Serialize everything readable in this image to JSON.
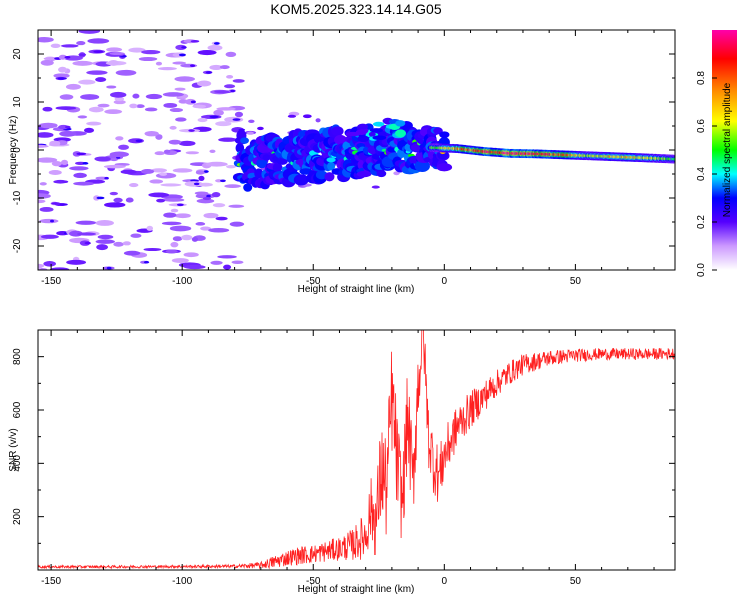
{
  "figure_title": "KOM5.2025.323.14.14.G05",
  "chart_data": [
    {
      "type": "heatmap",
      "title": "KOM5.2025.323.14.14.G05",
      "xlabel": "Height of straight line (km)",
      "ylabel": "Frequency (Hz)",
      "xlim": [
        -155,
        88
      ],
      "ylim": [
        -25,
        25
      ],
      "xticks": [
        -150,
        -100,
        -50,
        0,
        50
      ],
      "xtick_labels": [
        "-150",
        "-100",
        "-50",
        "0",
        "50"
      ],
      "yticks": [
        -20,
        -10,
        0,
        10,
        20
      ],
      "ytick_labels": [
        "-20",
        "-10",
        "0",
        "10",
        "20"
      ],
      "colorbar": {
        "label": "Normalized spectral amplitude",
        "range": [
          0,
          1
        ],
        "ticks": [
          0.0,
          0.2,
          0.4,
          0.6,
          0.8
        ],
        "tick_labels": [
          "0.0",
          "0.2",
          "0.4",
          "0.6",
          "0.8"
        ],
        "colors": [
          "#ffffff",
          "#cc99ff",
          "#5500ff",
          "#0000ff",
          "#00ffff",
          "#00ff00",
          "#ffff00",
          "#ff8800",
          "#ff0000",
          "#ff00aa"
        ]
      },
      "ridge": {
        "description": "Dominant spectral ridge: frequency vs height",
        "points": [
          {
            "x": -77,
            "y": -3,
            "amp": 0.35
          },
          {
            "x": -65,
            "y": -2,
            "amp": 0.4
          },
          {
            "x": -55,
            "y": -1.5,
            "amp": 0.35
          },
          {
            "x": -45,
            "y": -1,
            "amp": 0.35
          },
          {
            "x": -35,
            "y": -0.5,
            "amp": 0.4
          },
          {
            "x": -25,
            "y": 0,
            "amp": 0.45
          },
          {
            "x": -15,
            "y": 0.3,
            "amp": 0.55
          },
          {
            "x": -5,
            "y": 0.5,
            "amp": 0.5
          },
          {
            "x": 5,
            "y": 0.3,
            "amp": 0.75
          },
          {
            "x": 15,
            "y": -0.3,
            "amp": 0.9
          },
          {
            "x": 25,
            "y": -0.7,
            "amp": 0.95
          },
          {
            "x": 35,
            "y": -0.8,
            "amp": 0.95
          },
          {
            "x": 45,
            "y": -1.0,
            "amp": 0.8
          },
          {
            "x": 55,
            "y": -1.2,
            "amp": 0.6
          },
          {
            "x": 65,
            "y": -1.4,
            "amp": 0.7
          },
          {
            "x": 75,
            "y": -1.6,
            "amp": 0.65
          },
          {
            "x": 88,
            "y": -1.9,
            "amp": 0.5
          }
        ]
      }
    },
    {
      "type": "line",
      "xlabel": "Height of straight line (km)",
      "ylabel": "SNR (v/v)",
      "xlim": [
        -155,
        88
      ],
      "ylim": [
        0,
        900
      ],
      "xticks": [
        -150,
        -100,
        -50,
        0,
        50
      ],
      "xtick_labels": [
        "-150",
        "-100",
        "-50",
        "0",
        "50"
      ],
      "yticks": [
        200,
        400,
        600,
        800
      ],
      "ytick_labels": [
        "200",
        "400",
        "600",
        "800"
      ],
      "series": [
        {
          "name": "SNR",
          "color": "#ff2020",
          "x": [
            -155,
            -130,
            -100,
            -80,
            -70,
            -65,
            -60,
            -55,
            -50,
            -45,
            -40,
            -35,
            -30,
            -28,
            -26,
            -24,
            -22,
            -20,
            -18,
            -16,
            -14,
            -12,
            -10,
            -8,
            -6,
            -4,
            -2,
            0,
            5,
            10,
            15,
            20,
            25,
            30,
            40,
            50,
            60,
            70,
            80,
            88
          ],
          "y": [
            12,
            12,
            13,
            14,
            18,
            30,
            45,
            55,
            60,
            70,
            80,
            95,
            130,
            230,
            180,
            380,
            300,
            650,
            400,
            250,
            580,
            320,
            700,
            890,
            500,
            400,
            350,
            430,
            540,
            600,
            650,
            700,
            740,
            770,
            795,
            805,
            810,
            810,
            810,
            812
          ],
          "noise_amplitude": [
            5,
            5,
            5,
            6,
            12,
            25,
            30,
            35,
            35,
            40,
            45,
            60,
            90,
            120,
            150,
            200,
            200,
            220,
            200,
            160,
            180,
            160,
            160,
            100,
            120,
            120,
            110,
            100,
            80,
            70,
            60,
            50,
            45,
            40,
            30,
            25,
            22,
            22,
            22,
            22
          ]
        }
      ]
    }
  ]
}
